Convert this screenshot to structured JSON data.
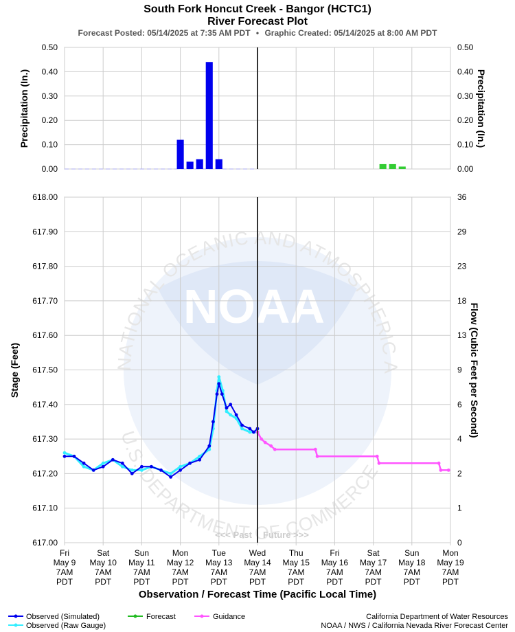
{
  "header": {
    "title": "South Fork Honcut Creek - Bangor (HCTC1)",
    "subtitle": "River Forecast Plot",
    "posted": "Forecast Posted: 05/14/2025 at 7:35 AM PDT",
    "separator": "•",
    "created": "Graphic Created: 05/14/2025 at 8:00 AM PDT"
  },
  "watermark": {
    "logo_text": "NOAA",
    "ring_top": "NATIONAL OCEANIC AND ATMOSPHERIC ADMINISTRATION",
    "ring_bottom": "U.S. DEPARTMENT OF COMMERCE"
  },
  "past_label": "<<< Past",
  "future_label": "Future >>>",
  "legend": {
    "observed_sim": "Observed (Simulated)",
    "observed_raw": "Observed (Raw Gauge)",
    "forecast": "Forecast",
    "guidance": "Guidance",
    "colors": {
      "observed_sim": "#0000ee",
      "observed_raw": "#33eeff",
      "forecast": "#22bb22",
      "guidance": "#ff55ff"
    }
  },
  "credits": {
    "line1": "California Department of Water Resources",
    "line2": "NOAA / NWS / California Nevada River Forecast Center"
  },
  "chart_data": [
    {
      "type": "bar",
      "name": "precipitation",
      "ylabel_left": "Precipitation (In.)",
      "ylabel_right": "Precipitation (In.)",
      "ylim": [
        0,
        0.5
      ],
      "yticks": [
        "0.00",
        "0.10",
        "0.20",
        "0.30",
        "0.40",
        "0.50"
      ],
      "observed_bars": [
        {
          "day": 3.0,
          "value": 0.12
        },
        {
          "day": 3.25,
          "value": 0.03
        },
        {
          "day": 3.5,
          "value": 0.04
        },
        {
          "day": 3.75,
          "value": 0.44
        },
        {
          "day": 4.0,
          "value": 0.04
        }
      ],
      "forecast_bars": [
        {
          "day": 8.25,
          "value": 0.02
        },
        {
          "day": 8.5,
          "value": 0.02
        },
        {
          "day": 8.75,
          "value": 0.01
        }
      ],
      "colors": {
        "observed": "#0000ee",
        "forecast": "#33cc33"
      }
    },
    {
      "type": "line",
      "name": "stage",
      "xlabel": "Observation / Forecast Time (Pacific Local Time)",
      "ylabel_left": "Stage (Feet)",
      "ylabel_right": "Flow (Cubic Feet per Second)",
      "ylim": [
        617.0,
        618.0
      ],
      "yticks_left": [
        "617.00",
        "617.10",
        "617.20",
        "617.30",
        "617.40",
        "617.50",
        "617.60",
        "617.70",
        "617.80",
        "617.90",
        "618.00"
      ],
      "yticks_right": [
        "0",
        "1",
        "2",
        "4",
        "6",
        "9",
        "13",
        "18",
        "23",
        "29",
        "36"
      ],
      "x_range_days": [
        0,
        10
      ],
      "now_day": 5,
      "x_ticks": [
        [
          "Fri",
          "May 9",
          "7AM",
          "PDT"
        ],
        [
          "Sat",
          "May 10",
          "7AM",
          "PDT"
        ],
        [
          "Sun",
          "May 11",
          "7AM",
          "PDT"
        ],
        [
          "Mon",
          "May 12",
          "7AM",
          "PDT"
        ],
        [
          "Tue",
          "May 13",
          "7AM",
          "PDT"
        ],
        [
          "Wed",
          "May 14",
          "7AM",
          "PDT"
        ],
        [
          "Thu",
          "May 15",
          "7AM",
          "PDT"
        ],
        [
          "Fri",
          "May 16",
          "7AM",
          "PDT"
        ],
        [
          "Sat",
          "May 17",
          "7AM",
          "PDT"
        ],
        [
          "Sun",
          "May 18",
          "7AM",
          "PDT"
        ],
        [
          "Mon",
          "May 19",
          "7AM",
          "PDT"
        ]
      ],
      "observed_simulated": [
        [
          0.0,
          617.25
        ],
        [
          0.25,
          617.25
        ],
        [
          0.5,
          617.23
        ],
        [
          0.75,
          617.21
        ],
        [
          1.0,
          617.22
        ],
        [
          1.25,
          617.24
        ],
        [
          1.5,
          617.23
        ],
        [
          1.75,
          617.2
        ],
        [
          2.0,
          617.22
        ],
        [
          2.25,
          617.22
        ],
        [
          2.5,
          617.21
        ],
        [
          2.75,
          617.19
        ],
        [
          3.0,
          617.21
        ],
        [
          3.25,
          617.23
        ],
        [
          3.5,
          617.24
        ],
        [
          3.75,
          617.28
        ],
        [
          3.85,
          617.35
        ],
        [
          3.95,
          617.43
        ],
        [
          4.0,
          617.46
        ],
        [
          4.08,
          617.43
        ],
        [
          4.2,
          617.39
        ],
        [
          4.3,
          617.4
        ],
        [
          4.45,
          617.37
        ],
        [
          4.6,
          617.34
        ],
        [
          4.8,
          617.33
        ],
        [
          4.9,
          617.32
        ],
        [
          5.0,
          617.33
        ]
      ],
      "observed_raw": [
        [
          0.0,
          617.26
        ],
        [
          0.25,
          617.25
        ],
        [
          0.5,
          617.22
        ],
        [
          0.75,
          617.21
        ],
        [
          1.0,
          617.23
        ],
        [
          1.25,
          617.24
        ],
        [
          1.5,
          617.22
        ],
        [
          1.75,
          617.21
        ],
        [
          2.0,
          617.21
        ],
        [
          2.25,
          617.22
        ],
        [
          2.5,
          617.21
        ],
        [
          2.75,
          617.2
        ],
        [
          3.0,
          617.22
        ],
        [
          3.25,
          617.23
        ],
        [
          3.5,
          617.25
        ],
        [
          3.75,
          617.27
        ],
        [
          3.85,
          617.33
        ],
        [
          3.95,
          617.44
        ],
        [
          4.0,
          617.48
        ],
        [
          4.1,
          617.44
        ],
        [
          4.2,
          617.38
        ],
        [
          4.3,
          617.37
        ],
        [
          4.45,
          617.36
        ],
        [
          4.6,
          617.33
        ],
        [
          4.8,
          617.32
        ],
        [
          4.9,
          617.32
        ],
        [
          5.0,
          617.32
        ]
      ],
      "guidance": [
        [
          5.0,
          617.32
        ],
        [
          5.1,
          617.3
        ],
        [
          5.2,
          617.29
        ],
        [
          5.35,
          617.28
        ],
        [
          5.45,
          617.27
        ],
        [
          6.5,
          617.27
        ],
        [
          6.55,
          617.25
        ],
        [
          8.1,
          617.25
        ],
        [
          8.15,
          617.23
        ],
        [
          9.7,
          617.23
        ],
        [
          9.75,
          617.21
        ],
        [
          9.95,
          617.21
        ]
      ]
    }
  ]
}
